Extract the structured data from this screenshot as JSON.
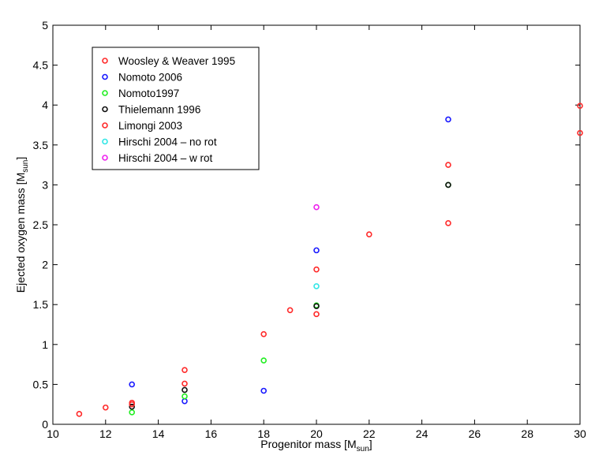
{
  "chart_data": {
    "type": "scatter",
    "title": "",
    "xlabel": {
      "main": "Progenitor mass [M",
      "sub": "sun",
      "end": "]"
    },
    "ylabel": {
      "main": "Ejected oxygen mass [M",
      "sub": "sun",
      "end": "]"
    },
    "xlim": [
      10,
      30
    ],
    "ylim": [
      0,
      5
    ],
    "xticks": [
      10,
      12,
      14,
      16,
      18,
      20,
      22,
      24,
      26,
      28,
      30
    ],
    "yticks": [
      0,
      0.5,
      1,
      1.5,
      2,
      2.5,
      3,
      3.5,
      4,
      4.5,
      5
    ],
    "xtick_labels": [
      "10",
      "12",
      "14",
      "16",
      "18",
      "20",
      "22",
      "24",
      "26",
      "28",
      "30"
    ],
    "ytick_labels": [
      "0",
      "0.5",
      "1",
      "1.5",
      "2",
      "2.5",
      "3",
      "3.5",
      "4",
      "4.5",
      "5"
    ],
    "grid": false,
    "legend_position": "top-left",
    "series": [
      {
        "name": "Woosley & Weaver 1995",
        "color": "#ff2a2a",
        "points": [
          [
            11,
            0.13
          ],
          [
            12,
            0.21
          ],
          [
            13,
            0.27
          ],
          [
            15,
            0.51
          ],
          [
            15,
            0.68
          ],
          [
            18,
            1.13
          ],
          [
            19,
            1.43
          ],
          [
            20,
            1.94
          ],
          [
            22,
            2.38
          ],
          [
            25,
            3.25
          ],
          [
            30,
            3.99
          ]
        ]
      },
      {
        "name": "Nomoto 2006",
        "color": "#1a1aff",
        "points": [
          [
            13,
            0.5
          ],
          [
            15,
            0.29
          ],
          [
            18,
            0.42
          ],
          [
            20,
            2.18
          ],
          [
            25,
            3.82
          ]
        ]
      },
      {
        "name": "Nomoto1997",
        "color": "#22ee22",
        "points": [
          [
            13,
            0.15
          ],
          [
            15,
            0.35
          ],
          [
            18,
            0.8
          ],
          [
            20,
            1.49
          ],
          [
            25,
            3.0
          ]
        ]
      },
      {
        "name": "Thielemann 1996",
        "color": "#111111",
        "points": [
          [
            13,
            0.22
          ],
          [
            15,
            0.43
          ],
          [
            20,
            1.48
          ],
          [
            25,
            3.0
          ]
        ]
      },
      {
        "name": "Limongi 2003",
        "color": "#ff2a2a",
        "points": [
          [
            13,
            0.25
          ],
          [
            20,
            1.38
          ],
          [
            25,
            2.52
          ],
          [
            30,
            3.65
          ]
        ]
      },
      {
        "name": "Hirschi 2004 – no rot",
        "color": "#33e6e6",
        "points": [
          [
            20,
            1.73
          ]
        ]
      },
      {
        "name": "Hirschi 2004 – w rot",
        "color": "#ee22ee",
        "points": [
          [
            20,
            2.72
          ]
        ]
      }
    ]
  }
}
